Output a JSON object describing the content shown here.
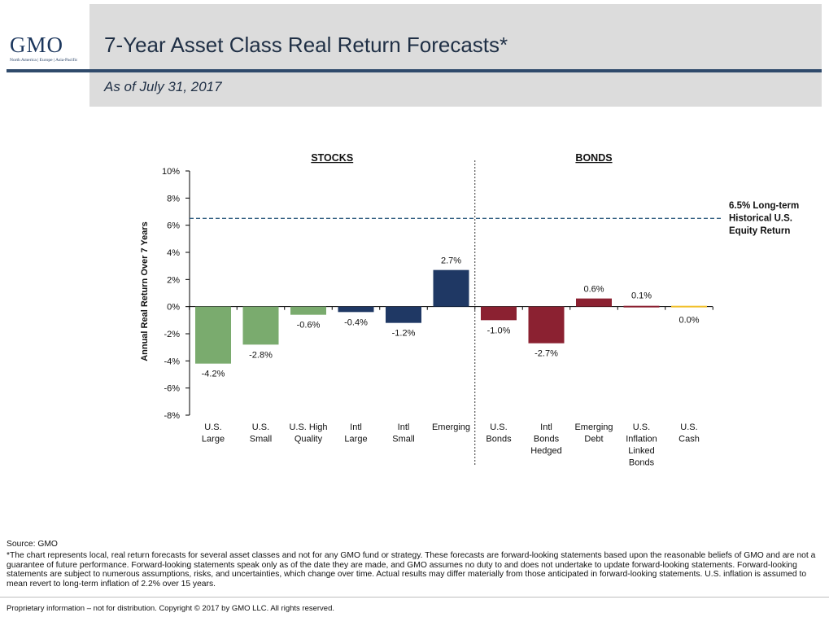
{
  "header": {
    "logo_text": "GMO",
    "logo_sub": "North America | Europe | Asia-Pacific",
    "title": "7-Year Asset Class Real Return Forecasts*",
    "subtitle": "As of July 31, 2017",
    "brand_color": "#1b365d"
  },
  "chart_data": {
    "type": "bar",
    "ylabel": "Annual Real Return Over 7 Years",
    "ylim": [
      -8,
      10
    ],
    "yticks": [
      10,
      8,
      6,
      4,
      2,
      0,
      -2,
      -4,
      -6,
      -8
    ],
    "ytick_labels": [
      "10%",
      "8%",
      "6%",
      "4%",
      "2%",
      "0%",
      "-2%",
      "-4%",
      "-6%",
      "-8%"
    ],
    "groups": [
      {
        "label": "STOCKS",
        "start": 0,
        "end": 5
      },
      {
        "label": "BONDS",
        "start": 6,
        "end": 10
      }
    ],
    "categories": [
      "U.S.\nLarge",
      "U.S.\nSmall",
      "U.S. High\nQuality",
      "Intl\nLarge",
      "Intl\nSmall",
      "Emerging",
      "U.S.\nBonds",
      "Intl\nBonds\nHedged",
      "Emerging\nDebt",
      "U.S.\nInflation\nLinked\nBonds",
      "U.S.\nCash"
    ],
    "values": [
      -4.2,
      -2.8,
      -0.6,
      -0.4,
      -1.2,
      2.7,
      -1.0,
      -2.7,
      0.6,
      0.1,
      0.0
    ],
    "value_labels": [
      "-4.2%",
      "-2.8%",
      "-0.6%",
      "-0.4%",
      "-1.2%",
      "2.7%",
      "-1.0%",
      "-2.7%",
      "0.6%",
      "0.1%",
      "0.0%"
    ],
    "colors": [
      "#7aab6e",
      "#7aab6e",
      "#7aab6e",
      "#1f3864",
      "#1f3864",
      "#1f3864",
      "#8b2131",
      "#8b2131",
      "#8b2131",
      "#8b2131",
      "#f2c12e"
    ],
    "reference_line": {
      "value": 6.5,
      "label": "6.5% Long-term\nHistorical U.S.\nEquity Return",
      "color": "#2e5b7f"
    }
  },
  "footer": {
    "source": "Source: GMO",
    "note": "*The chart represents local, real return forecasts for several asset classes and not for any GMO fund or strategy.  These forecasts are forward-looking statements based upon the reasonable beliefs of GMO and are not a guarantee of future performance.  Forward-looking statements speak only as of the date they are made, and GMO assumes no duty to and does not undertake to update forward-looking statements.  Forward-looking statements are subject to numerous assumptions, risks, and uncertainties, which change over time.  Actual results may differ materially from those anticipated in forward-looking statements. U.S. inflation is assumed to mean revert to long-term inflation of 2.2% over 15 years.",
    "proprietary": "Proprietary information – not for distribution.  Copyright © 2017 by GMO LLC.  All rights reserved."
  }
}
